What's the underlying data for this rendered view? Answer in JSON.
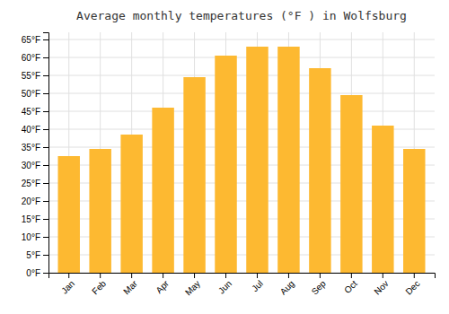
{
  "chart_data": {
    "type": "bar",
    "title": "Average monthly temperatures (°F ) in Wolfsburg",
    "categories": [
      "Jan",
      "Feb",
      "Mar",
      "Apr",
      "May",
      "Jun",
      "Jul",
      "Aug",
      "Sep",
      "Oct",
      "Nov",
      "Dec"
    ],
    "values": [
      32.5,
      34.5,
      38.5,
      46.0,
      54.5,
      60.5,
      63.0,
      63.0,
      57.0,
      49.5,
      41.0,
      34.5
    ],
    "color": "#FDB931",
    "ylim": [
      0,
      67
    ],
    "yticks": [
      {
        "value": 0,
        "label": "0°F"
      },
      {
        "value": 5,
        "label": "5°F"
      },
      {
        "value": 10,
        "label": "10°F"
      },
      {
        "value": 15,
        "label": "15°F"
      },
      {
        "value": 20,
        "label": "20°F"
      },
      {
        "value": 25,
        "label": "25°F"
      },
      {
        "value": 30,
        "label": "30°F"
      },
      {
        "value": 35,
        "label": "35°F"
      },
      {
        "value": 40,
        "label": "40°F"
      },
      {
        "value": 45,
        "label": "45°F"
      },
      {
        "value": 50,
        "label": "50°F"
      },
      {
        "value": 55,
        "label": "55°F"
      },
      {
        "value": 60,
        "label": "60°F"
      },
      {
        "value": 65,
        "label": "65°F"
      }
    ],
    "grid": true
  }
}
